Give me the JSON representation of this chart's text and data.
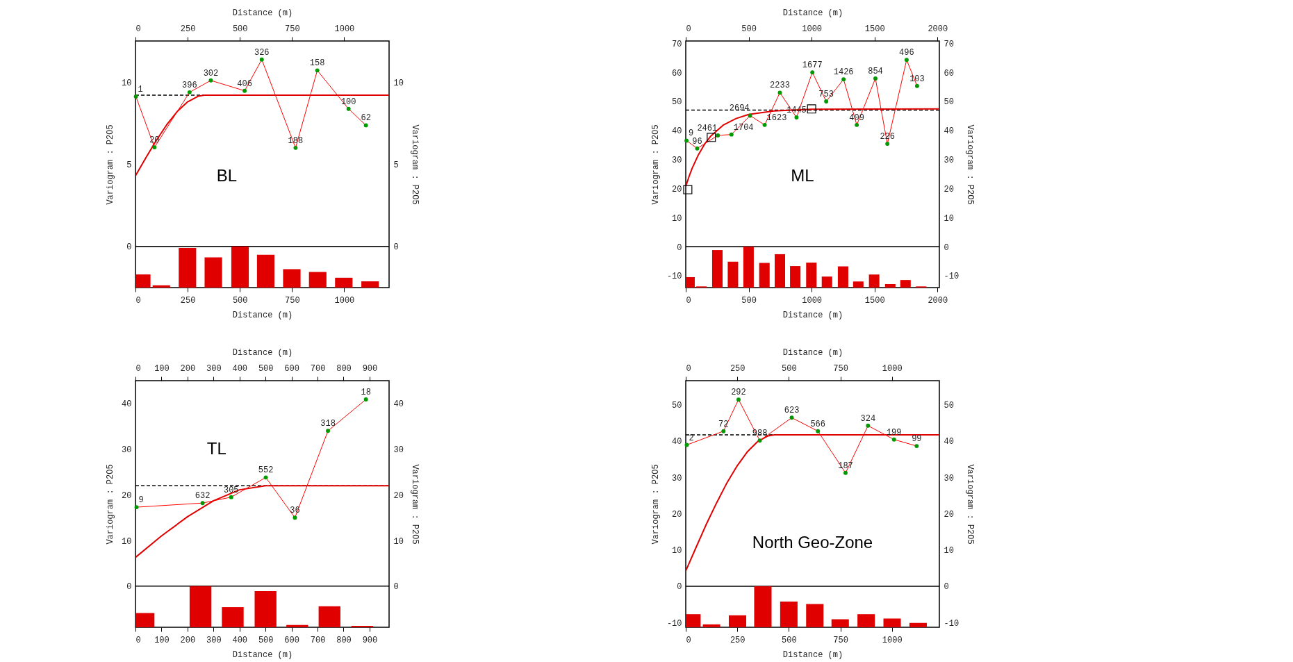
{
  "chart_data": [
    {
      "type": "line",
      "title": "BL",
      "xlabel": "Distance (m)",
      "x2label": "Distance (m)",
      "ylabel": "Variogram : P2O5",
      "y2label": "Variogram : P2O5",
      "xlim": [
        0,
        1215
      ],
      "xticks": [
        0,
        250,
        500,
        750,
        1000
      ],
      "x2lim": [
        0,
        1215
      ],
      "x2ticks": [
        0,
        250,
        500,
        750,
        1000
      ],
      "ylim": [
        -2.5,
        12.5
      ],
      "yticks": [
        0,
        5,
        10
      ],
      "y2lim": [
        -2.5,
        12.5
      ],
      "y2ticks": [
        0,
        5,
        10
      ],
      "grid": false,
      "ref_lines": [
        {
          "axis": "y",
          "value": 9.2,
          "color": "#000000",
          "line_style": "dashed"
        },
        {
          "axis": "y",
          "value": 0,
          "color": "#000000",
          "line_style": "solid"
        }
      ],
      "series": [
        {
          "type": "bar",
          "color": "#e00000",
          "x": [
            30,
            124,
            249,
            373,
            501,
            624,
            749,
            873,
            998,
            1124
          ],
          "base": [
            -2.5,
            -2.5,
            -2.5,
            -2.5,
            -2.5,
            -2.5,
            -2.5,
            -2.5,
            -2.5,
            -2.5
          ],
          "values": [
            0.8,
            0.14,
            2.41,
            1.84,
            2.5,
            2.0,
            1.12,
            0.95,
            0.6,
            0.38
          ]
        },
        {
          "color": "#e00000",
          "marker": "none",
          "line_style": "solid",
          "x": [
            0,
            50,
            100,
            150,
            200,
            250,
            300,
            330,
            1215
          ],
          "values": [
            4.3,
            5.4,
            6.46,
            7.41,
            8.21,
            8.8,
            9.14,
            9.2,
            9.2
          ]
        },
        {
          "color": "#ff0000",
          "marker": "none",
          "line_style": "solid",
          "x": [
            2,
            91,
            259,
            361,
            523,
            605,
            767,
            871,
            1021,
            1104
          ],
          "values": [
            9.12,
            6.03,
            9.38,
            10.1,
            9.47,
            11.37,
            6.0,
            10.71,
            8.37,
            7.37
          ]
        },
        {
          "type": "scatter",
          "color": "#009900",
          "marker": "circle",
          "x": [
            2,
            91,
            259,
            361,
            523,
            605,
            767,
            871,
            1021,
            1104
          ],
          "values": [
            9.12,
            6.03,
            9.38,
            10.1,
            9.47,
            11.37,
            6.0,
            10.71,
            8.37,
            7.37
          ]
        }
      ],
      "annotations": [
        {
          "text": "1",
          "x": 2,
          "y": 9.12
        },
        {
          "text": "20",
          "x": 91,
          "y": 6.03
        },
        {
          "text": "396",
          "x": 259,
          "y": 9.38
        },
        {
          "text": "302",
          "x": 361,
          "y": 10.1
        },
        {
          "text": "406",
          "x": 523,
          "y": 9.47
        },
        {
          "text": "326",
          "x": 605,
          "y": 11.37
        },
        {
          "text": "188",
          "x": 767,
          "y": 6.0
        },
        {
          "text": "158",
          "x": 871,
          "y": 10.71
        },
        {
          "text": "100",
          "x": 1021,
          "y": 8.37
        },
        {
          "text": "62",
          "x": 1104,
          "y": 7.37
        }
      ]
    },
    {
      "type": "line",
      "title": "ML",
      "xlabel": "Distance (m)",
      "x2label": "Distance (m)",
      "ylabel": "Variogram : P2O5",
      "y2label": "Variogram : P2O5",
      "xlim": [
        0,
        2015
      ],
      "xticks": [
        0,
        500,
        1000,
        1500,
        2000
      ],
      "x2lim": [
        0,
        2015
      ],
      "x2ticks": [
        0,
        500,
        1000,
        1500,
        2000
      ],
      "ylim": [
        -14.1,
        70.8
      ],
      "yticks": [
        -10,
        0,
        10,
        20,
        30,
        40,
        50,
        60,
        70
      ],
      "y2lim": [
        -14.1,
        70.8
      ],
      "y2ticks": [
        -10,
        0,
        10,
        20,
        30,
        40,
        50,
        60,
        70
      ],
      "grid": false,
      "ref_lines": [
        {
          "axis": "y",
          "value": 47.0,
          "color": "#000000",
          "line_style": "dashed"
        },
        {
          "axis": "y",
          "value": 0,
          "color": "#000000",
          "line_style": "solid"
        }
      ],
      "series": [
        {
          "type": "bar",
          "color": "#e00000",
          "x": [
            30,
            124,
            251,
            375,
            499,
            625,
            748,
            870,
            998,
            1122,
            1250,
            1371,
            1497,
            1625,
            1746,
            1870
          ],
          "base": [
            -14.1,
            -14.1,
            -14.1,
            -14.1,
            -14.1,
            -14.1,
            -14.1,
            -14.1,
            -14.1,
            -14.1,
            -14.1,
            -14.1,
            -14.1,
            -14.1,
            -14.1,
            -14.1
          ],
          "values": [
            3.6,
            0.4,
            12.9,
            8.9,
            14.1,
            8.5,
            11.5,
            7.4,
            8.6,
            3.8,
            7.3,
            2.1,
            4.5,
            1.2,
            2.6,
            0.4
          ]
        },
        {
          "color": "#e00000",
          "marker": "none",
          "line_style": "solid",
          "x": [
            0,
            25,
            50,
            100,
            150,
            200,
            300,
            400,
            500,
            700,
            1000,
            2015
          ],
          "values": [
            20.7,
            24.0,
            26.9,
            31.6,
            35.3,
            38.1,
            41.9,
            44.1,
            45.5,
            46.7,
            47.3,
            47.4
          ]
        },
        {
          "color": "#ff0000",
          "marker": "none",
          "line_style": "solid",
          "x": [
            6,
            91,
            255,
            363,
            511,
            627,
            748,
            880,
            1006,
            1116,
            1254,
            1359,
            1507,
            1602,
            1755,
            1838
          ],
          "values": [
            36.5,
            33.8,
            38.3,
            38.6,
            45.1,
            41.9,
            53.0,
            44.5,
            60.0,
            50.0,
            57.6,
            41.9,
            57.9,
            35.4,
            64.3,
            55.3
          ]
        },
        {
          "type": "scatter",
          "color": "#009900",
          "marker": "circle",
          "x": [
            6,
            91,
            255,
            363,
            511,
            627,
            748,
            880,
            1006,
            1116,
            1254,
            1359,
            1507,
            1602,
            1755,
            1838
          ],
          "values": [
            36.5,
            33.8,
            38.3,
            38.6,
            45.1,
            41.9,
            53.0,
            44.5,
            60.0,
            50.0,
            57.6,
            41.9,
            57.9,
            35.4,
            64.3,
            55.3
          ]
        },
        {
          "type": "scatter",
          "color": "#000000",
          "marker": "square",
          "x": [
            16,
            203,
            1000
          ],
          "values": [
            19.6,
            37.6,
            47.4
          ]
        }
      ],
      "annotations": [
        {
          "text": "9",
          "x": 6,
          "y": 36.5
        },
        {
          "text": "96",
          "x": 91,
          "y": 33.8
        },
        {
          "text": "2461",
          "x": 255,
          "y": 38.3
        },
        {
          "text": "1704",
          "x": 363,
          "y": 38.6
        },
        {
          "text": "2694",
          "x": 511,
          "y": 45.1
        },
        {
          "text": "1623",
          "x": 627,
          "y": 41.9
        },
        {
          "text": "2233",
          "x": 748,
          "y": 53.0
        },
        {
          "text": "1445",
          "x": 880,
          "y": 44.5
        },
        {
          "text": "1677",
          "x": 1006,
          "y": 60.0
        },
        {
          "text": "753",
          "x": 1116,
          "y": 50.0
        },
        {
          "text": "1426",
          "x": 1254,
          "y": 57.6
        },
        {
          "text": "409",
          "x": 1359,
          "y": 41.9
        },
        {
          "text": "854",
          "x": 1507,
          "y": 57.9
        },
        {
          "text": "226",
          "x": 1602,
          "y": 35.4
        },
        {
          "text": "496",
          "x": 1755,
          "y": 64.3
        },
        {
          "text": "103",
          "x": 1838,
          "y": 55.3
        }
      ]
    },
    {
      "type": "line",
      "title": "TL",
      "xlabel": "Distance (m)",
      "x2label": "Distance (m)",
      "ylabel": "Variogram : P2O5",
      "y2label": "Variogram : P2O5",
      "xlim": [
        0,
        975
      ],
      "xticks": [
        0,
        100,
        200,
        300,
        400,
        500,
        600,
        700,
        800,
        900
      ],
      "x2lim": [
        0,
        975
      ],
      "x2ticks": [
        0,
        100,
        200,
        300,
        400,
        500,
        600,
        700,
        800,
        900
      ],
      "ylim": [
        -9,
        45
      ],
      "yticks": [
        0,
        10,
        20,
        30,
        40
      ],
      "y2lim": [
        -9,
        45
      ],
      "y2ticks": [
        0,
        10,
        20,
        30,
        40
      ],
      "grid": false,
      "ref_lines": [
        {
          "axis": "y",
          "value": 22,
          "color": "#000000",
          "line_style": "dashed"
        },
        {
          "axis": "y",
          "value": 0,
          "color": "#000000",
          "line_style": "solid"
        }
      ],
      "series": [
        {
          "type": "bar",
          "color": "#e00000",
          "x": [
            31,
            250,
            374,
            500,
            622,
            746,
            872
          ],
          "base": [
            -9,
            -9,
            -9,
            -9,
            -9,
            -9,
            -9
          ],
          "values": [
            3.1,
            9.0,
            4.4,
            7.9,
            0.5,
            4.6,
            0.3
          ]
        },
        {
          "color": "#e00000",
          "marker": "none",
          "line_style": "solid",
          "x": [
            0,
            100,
            200,
            300,
            400,
            500,
            975
          ],
          "values": [
            6.3,
            11.0,
            15.2,
            18.7,
            21.1,
            22,
            22
          ]
        },
        {
          "color": "#ff0000",
          "marker": "none",
          "line_style": "solid",
          "x": [
            4,
            258,
            368,
            501,
            613,
            740,
            886
          ],
          "values": [
            17.3,
            18.2,
            19.5,
            23.8,
            15.0,
            34.0,
            40.9
          ]
        },
        {
          "type": "scatter",
          "color": "#009900",
          "marker": "circle",
          "x": [
            4,
            258,
            368,
            501,
            613,
            740,
            886
          ],
          "values": [
            17.3,
            18.2,
            19.5,
            23.8,
            15.0,
            34.0,
            40.9
          ]
        }
      ],
      "annotations": [
        {
          "text": "9",
          "x": 4,
          "y": 17.3
        },
        {
          "text": "632",
          "x": 258,
          "y": 18.2
        },
        {
          "text": "305",
          "x": 368,
          "y": 19.5
        },
        {
          "text": "552",
          "x": 501,
          "y": 23.8
        },
        {
          "text": "36",
          "x": 613,
          "y": 15.0
        },
        {
          "text": "318",
          "x": 740,
          "y": 34.0
        },
        {
          "text": "18",
          "x": 886,
          "y": 40.9
        }
      ]
    },
    {
      "type": "line",
      "title": "North Geo-Zone",
      "xlabel": "Distance (m)",
      "x2label": "Distance (m)",
      "ylabel": "Variogram : P2O5",
      "y2label": "Variogram : P2O5",
      "xlim": [
        0,
        1230
      ],
      "xticks": [
        0,
        250,
        500,
        750,
        1000
      ],
      "x2lim": [
        0,
        1230
      ],
      "x2ticks": [
        0,
        250,
        500,
        750,
        1000
      ],
      "ylim": [
        -11.3,
        56.6
      ],
      "yticks": [
        -10,
        0,
        10,
        20,
        30,
        40,
        50
      ],
      "y2lim": [
        -11.3,
        56.6
      ],
      "y2ticks": [
        -10,
        0,
        10,
        20,
        30,
        40,
        50
      ],
      "grid": false,
      "ref_lines": [
        {
          "axis": "y",
          "value": 41.7,
          "color": "#000000",
          "line_style": "dashed"
        },
        {
          "axis": "y",
          "value": 0,
          "color": "#000000",
          "line_style": "solid"
        }
      ],
      "series": [
        {
          "type": "bar",
          "color": "#e00000",
          "x": [
            30,
            125,
            251,
            374,
            500,
            626,
            749,
            875,
            1001,
            1127
          ],
          "base": [
            -11.3,
            -11.3,
            -11.3,
            -11.3,
            -11.3,
            -11.3,
            -11.3,
            -11.3,
            -11.3,
            -11.3
          ],
          "values": [
            3.6,
            0.8,
            3.3,
            11.3,
            7.1,
            6.4,
            2.2,
            3.6,
            2.4,
            1.2
          ]
        },
        {
          "color": "#e00000",
          "marker": "none",
          "line_style": "solid",
          "x": [
            0,
            50,
            100,
            150,
            200,
            250,
            300,
            350,
            400,
            430,
            1230
          ],
          "values": [
            4.2,
            10.7,
            17.1,
            23.0,
            28.5,
            33.2,
            37.1,
            39.9,
            41.4,
            41.7,
            41.7
          ]
        },
        {
          "color": "#ff0000",
          "marker": "none",
          "line_style": "solid",
          "x": [
            5,
            183,
            256,
            359,
            514,
            641,
            775,
            884,
            1010,
            1120
          ],
          "values": [
            38.9,
            42.7,
            51.4,
            40.1,
            46.4,
            42.7,
            31.2,
            44.2,
            40.4,
            38.6
          ]
        },
        {
          "type": "scatter",
          "color": "#009900",
          "marker": "circle",
          "x": [
            5,
            183,
            256,
            359,
            514,
            641,
            775,
            884,
            1010,
            1120
          ],
          "values": [
            38.9,
            42.7,
            51.4,
            40.1,
            46.4,
            42.7,
            31.2,
            44.2,
            40.4,
            38.6
          ]
        }
      ],
      "annotations": [
        {
          "text": "2",
          "x": 5,
          "y": 38.9
        },
        {
          "text": "72",
          "x": 183,
          "y": 42.7
        },
        {
          "text": "292",
          "x": 256,
          "y": 51.4
        },
        {
          "text": "988",
          "x": 359,
          "y": 40.1
        },
        {
          "text": "623",
          "x": 514,
          "y": 46.4
        },
        {
          "text": "566",
          "x": 641,
          "y": 42.7
        },
        {
          "text": "187",
          "x": 775,
          "y": 31.2
        },
        {
          "text": "324",
          "x": 884,
          "y": 44.2
        },
        {
          "text": "199",
          "x": 1010,
          "y": 40.4
        },
        {
          "text": "99",
          "x": 1120,
          "y": 38.6
        }
      ]
    }
  ]
}
